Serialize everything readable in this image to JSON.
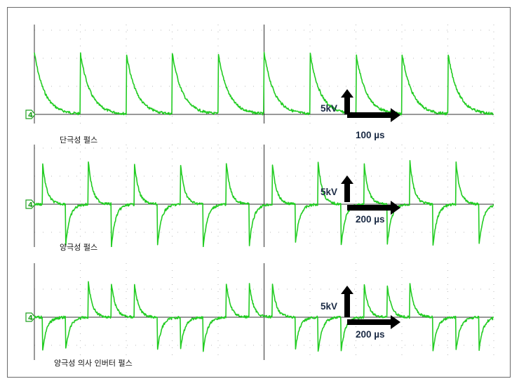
{
  "chart_data": [
    {
      "type": "line",
      "label": "단극성 펄스",
      "pattern": "unipolar",
      "cycles": 10,
      "decay_fraction": 0.8,
      "series": [
        {
          "color": "#22cc22"
        }
      ],
      "grid": "dotted",
      "annotations": {
        "voltage_scale": "5kV",
        "time_scale": "100 µs"
      }
    },
    {
      "type": "line",
      "label": "양극성 펄스",
      "pattern": "bipolar",
      "cycles": 10,
      "decay_fraction": 0.55,
      "series": [
        {
          "color": "#22cc22"
        }
      ],
      "grid": "dotted",
      "annotations": {
        "voltage_scale": "5kV",
        "time_scale": "200 µs"
      }
    },
    {
      "type": "line",
      "label": "양극성 의사 인버터 펄스",
      "pattern": "pseudo-inverter",
      "sequence": [
        -1,
        -1,
        1,
        1,
        1,
        -1,
        -1,
        -1,
        1,
        1,
        1,
        -1,
        -1,
        -1,
        1,
        1,
        1,
        -1,
        -1,
        -1
      ],
      "decay_fraction": 0.55,
      "series": [
        {
          "color": "#22cc22"
        }
      ],
      "grid": "dotted",
      "annotations": {
        "voltage_scale": "5kV",
        "time_scale": "200 µs"
      }
    }
  ],
  "colors": {
    "trace": "#22cc22",
    "grid": "#bbbbbb",
    "axis": "#333333",
    "arrow": "#000000",
    "text": "#1a2a44",
    "marker": "#1fa01f"
  },
  "marker_label": "4"
}
